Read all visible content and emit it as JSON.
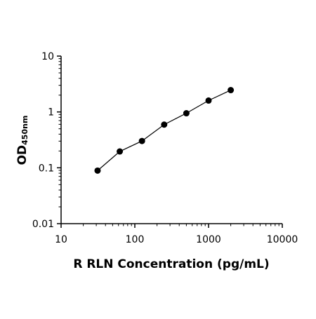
{
  "chart_data": {
    "type": "scatter",
    "title": "",
    "xlabel": "R RLN Concentration (pg/mL)",
    "ylabel": "OD",
    "ylabel_subscript": "450nm",
    "x_scale": "log",
    "y_scale": "log",
    "xlim": [
      10,
      10000
    ],
    "ylim": [
      0.01,
      10
    ],
    "x_ticks": [
      10,
      100,
      1000,
      10000
    ],
    "x_tick_labels": [
      "10",
      "100",
      "1000",
      "10000"
    ],
    "y_ticks": [
      0.01,
      0.1,
      1,
      10
    ],
    "y_tick_labels": [
      "0.01",
      "0.1",
      "1",
      "10"
    ],
    "grid": false,
    "legend": "none",
    "fit_line": true,
    "series": [
      {
        "x": [
          31.25,
          62.5,
          125,
          250,
          500,
          1000,
          2000
        ],
        "y": [
          0.089,
          0.196,
          0.302,
          0.593,
          0.948,
          1.601,
          2.458
        ]
      }
    ],
    "colors": {
      "marker": "#000000",
      "line": "#000000",
      "axis": "#000000"
    }
  }
}
